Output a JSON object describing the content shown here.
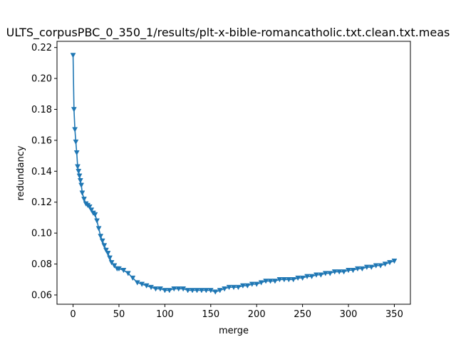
{
  "chart_data": {
    "type": "line",
    "title": "ULTS_corpusPBC_0_350_1/results/plt-x-bible-romancatholic.txt.clean.txt.meas",
    "xlabel": "merge",
    "ylabel": "redundancy",
    "xlim": [
      -17.5,
      367.5
    ],
    "ylim": [
      0.054,
      0.224
    ],
    "xticks": [
      0,
      50,
      100,
      150,
      200,
      250,
      300,
      350
    ],
    "xtick_labels": [
      "0",
      "50",
      "100",
      "150",
      "200",
      "250",
      "300",
      "350"
    ],
    "yticks": [
      0.06,
      0.08,
      0.1,
      0.12,
      0.14,
      0.16,
      0.18,
      0.2,
      0.22
    ],
    "ytick_labels": [
      "0.06",
      "0.08",
      "0.10",
      "0.12",
      "0.14",
      "0.16",
      "0.18",
      "0.20",
      "0.22"
    ],
    "grid": false,
    "marker": "triangle-down",
    "color": "#1f77b4",
    "series": [
      {
        "x": [
          0,
          1,
          2,
          3,
          4,
          5,
          6,
          7,
          8,
          9,
          10,
          12,
          14,
          16,
          18,
          20,
          22,
          24,
          26,
          28,
          30,
          32,
          34,
          36,
          38,
          40,
          42,
          45,
          48,
          50,
          55,
          60,
          65,
          70,
          75,
          80,
          85,
          90,
          95,
          100,
          105,
          110,
          115,
          120,
          125,
          130,
          135,
          140,
          145,
          150,
          155,
          160,
          165,
          170,
          175,
          180,
          185,
          190,
          195,
          200,
          205,
          210,
          215,
          220,
          225,
          230,
          235,
          240,
          245,
          250,
          255,
          260,
          265,
          270,
          275,
          280,
          285,
          290,
          295,
          300,
          305,
          310,
          315,
          320,
          325,
          330,
          335,
          340,
          345,
          350
        ],
        "y": [
          0.215,
          0.18,
          0.167,
          0.159,
          0.152,
          0.143,
          0.14,
          0.137,
          0.134,
          0.131,
          0.126,
          0.122,
          0.119,
          0.118,
          0.117,
          0.115,
          0.113,
          0.112,
          0.108,
          0.103,
          0.098,
          0.095,
          0.092,
          0.089,
          0.087,
          0.084,
          0.081,
          0.079,
          0.077,
          0.077,
          0.076,
          0.074,
          0.071,
          0.068,
          0.067,
          0.066,
          0.065,
          0.064,
          0.064,
          0.063,
          0.063,
          0.064,
          0.064,
          0.064,
          0.063,
          0.063,
          0.063,
          0.063,
          0.063,
          0.063,
          0.062,
          0.063,
          0.064,
          0.065,
          0.065,
          0.065,
          0.066,
          0.066,
          0.067,
          0.067,
          0.068,
          0.069,
          0.069,
          0.069,
          0.07,
          0.07,
          0.07,
          0.07,
          0.071,
          0.071,
          0.072,
          0.072,
          0.073,
          0.073,
          0.074,
          0.074,
          0.075,
          0.075,
          0.075,
          0.076,
          0.076,
          0.077,
          0.077,
          0.078,
          0.078,
          0.079,
          0.079,
          0.08,
          0.081,
          0.082
        ]
      }
    ]
  }
}
